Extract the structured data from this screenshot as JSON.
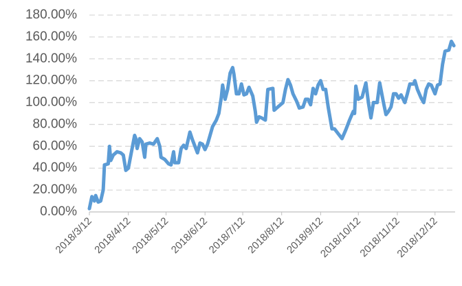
{
  "chart_data": {
    "type": "line",
    "x": [
      "2018/3/12",
      "2018/3/14",
      "2018/3/16",
      "2018/3/17",
      "2018/3/19",
      "2018/3/21",
      "2018/3/23",
      "2018/3/24",
      "2018/3/27",
      "2018/3/28",
      "2018/3/29",
      "2018/3/31",
      "2018/4/3",
      "2018/4/6",
      "2018/4/8",
      "2018/4/10",
      "2018/4/12",
      "2018/4/14",
      "2018/4/17",
      "2018/4/18",
      "2018/4/19",
      "2018/4/21",
      "2018/4/23",
      "2018/4/25",
      "2018/4/26",
      "2018/4/29",
      "2018/5/2",
      "2018/5/5",
      "2018/5/7",
      "2018/5/8",
      "2018/5/11",
      "2018/5/14",
      "2018/5/16",
      "2018/5/18",
      "2018/5/19",
      "2018/5/22",
      "2018/5/24",
      "2018/5/26",
      "2018/5/28",
      "2018/5/31",
      "2018/6/2",
      "2018/6/4",
      "2018/6/6",
      "2018/6/8",
      "2018/6/10",
      "2018/6/12",
      "2018/6/14",
      "2018/6/16",
      "2018/6/18",
      "2018/6/21",
      "2018/6/23",
      "2018/6/25",
      "2018/6/26",
      "2018/6/28",
      "2018/6/30",
      "2018/7/2",
      "2018/7/4",
      "2018/7/5",
      "2018/7/7",
      "2018/7/9",
      "2018/7/11",
      "2018/7/13",
      "2018/7/15",
      "2018/7/17",
      "2018/7/20",
      "2018/7/22",
      "2018/7/23",
      "2018/7/25",
      "2018/7/27",
      "2018/7/30",
      "2018/8/1",
      "2018/8/5",
      "2018/8/6",
      "2018/8/8",
      "2018/8/11",
      "2018/8/13",
      "2018/8/15",
      "2018/8/17",
      "2018/8/19",
      "2018/8/21",
      "2018/8/24",
      "2018/8/26",
      "2018/8/29",
      "2018/8/31",
      "2018/9/2",
      "2018/9/4",
      "2018/9/6",
      "2018/9/8",
      "2018/9/10",
      "2018/9/12",
      "2018/9/14",
      "2018/9/16",
      "2018/9/18",
      "2018/9/21",
      "2018/9/23",
      "2018/9/25",
      "2018/9/27",
      "2018/9/29",
      "2018/10/2",
      "2018/10/5",
      "2018/10/8",
      "2018/10/9",
      "2018/10/10",
      "2018/10/12",
      "2018/10/15",
      "2018/10/18",
      "2018/10/20",
      "2018/10/22",
      "2018/10/24",
      "2018/10/27",
      "2018/10/29",
      "2018/11/1",
      "2018/11/3",
      "2018/11/5",
      "2018/11/7",
      "2018/11/9",
      "2018/11/11",
      "2018/11/13",
      "2018/11/15",
      "2018/11/18",
      "2018/11/20",
      "2018/11/22",
      "2018/11/25",
      "2018/11/26",
      "2018/11/28",
      "2018/12/1",
      "2018/12/3",
      "2018/12/5",
      "2018/12/7",
      "2018/12/9",
      "2018/12/12",
      "2018/12/14",
      "2018/12/16",
      "2018/12/18",
      "2018/12/20",
      "2018/12/23",
      "2018/12/25",
      "2018/12/27"
    ],
    "series": [
      {
        "color": "#5b9bd5",
        "values": [
          3,
          14,
          10,
          15,
          9,
          10,
          20,
          43,
          44,
          60,
          47,
          52,
          55,
          54,
          52,
          38,
          40,
          52,
          70,
          67,
          58,
          67,
          64,
          50,
          62,
          63,
          62,
          67,
          60,
          50,
          48,
          44,
          43,
          55,
          45,
          45,
          58,
          61,
          58,
          73,
          66,
          60,
          54,
          63,
          62,
          57,
          62,
          70,
          78,
          84,
          90,
          105,
          116,
          103,
          112,
          127,
          132,
          126,
          108,
          108,
          117,
          107,
          108,
          114,
          106,
          92,
          82,
          87,
          86,
          84,
          112,
          113,
          93,
          95,
          98,
          100,
          112,
          121,
          116,
          108,
          101,
          95,
          96,
          103,
          103,
          98,
          113,
          108,
          116,
          120,
          112,
          112,
          96,
          76,
          76,
          73,
          70,
          67,
          75,
          84,
          92,
          90,
          115,
          103,
          105,
          118,
          100,
          86,
          100,
          100,
          118,
          100,
          89,
          92,
          96,
          108,
          108,
          104,
          107,
          100,
          108,
          117,
          117,
          120,
          112,
          104,
          100,
          112,
          117,
          116,
          108,
          116,
          117,
          135,
          147,
          148,
          156,
          152
        ]
      }
    ],
    "xlim": [
      "2018/3/12",
      "2018/12/28"
    ],
    "xticks": [
      "2018/3/12",
      "2018/4/12",
      "2018/5/12",
      "2018/6/12",
      "2018/7/12",
      "2018/8/12",
      "2018/9/12",
      "2018/10/12",
      "2018/11/12",
      "2018/12/12"
    ],
    "ylim": [
      0,
      180
    ],
    "yticks": [
      {
        "value": 0,
        "label": "0.00%"
      },
      {
        "value": 20,
        "label": "20.00%"
      },
      {
        "value": 40,
        "label": "40.00%"
      },
      {
        "value": 60,
        "label": "60.00%"
      },
      {
        "value": 80,
        "label": "80.00%"
      },
      {
        "value": 100,
        "label": "100.00%"
      },
      {
        "value": 120,
        "label": "120.00%"
      },
      {
        "value": 140,
        "label": "140.00%"
      },
      {
        "value": 160,
        "label": "160.00%"
      },
      {
        "value": 180,
        "label": "180.00%"
      }
    ],
    "grid": true
  }
}
